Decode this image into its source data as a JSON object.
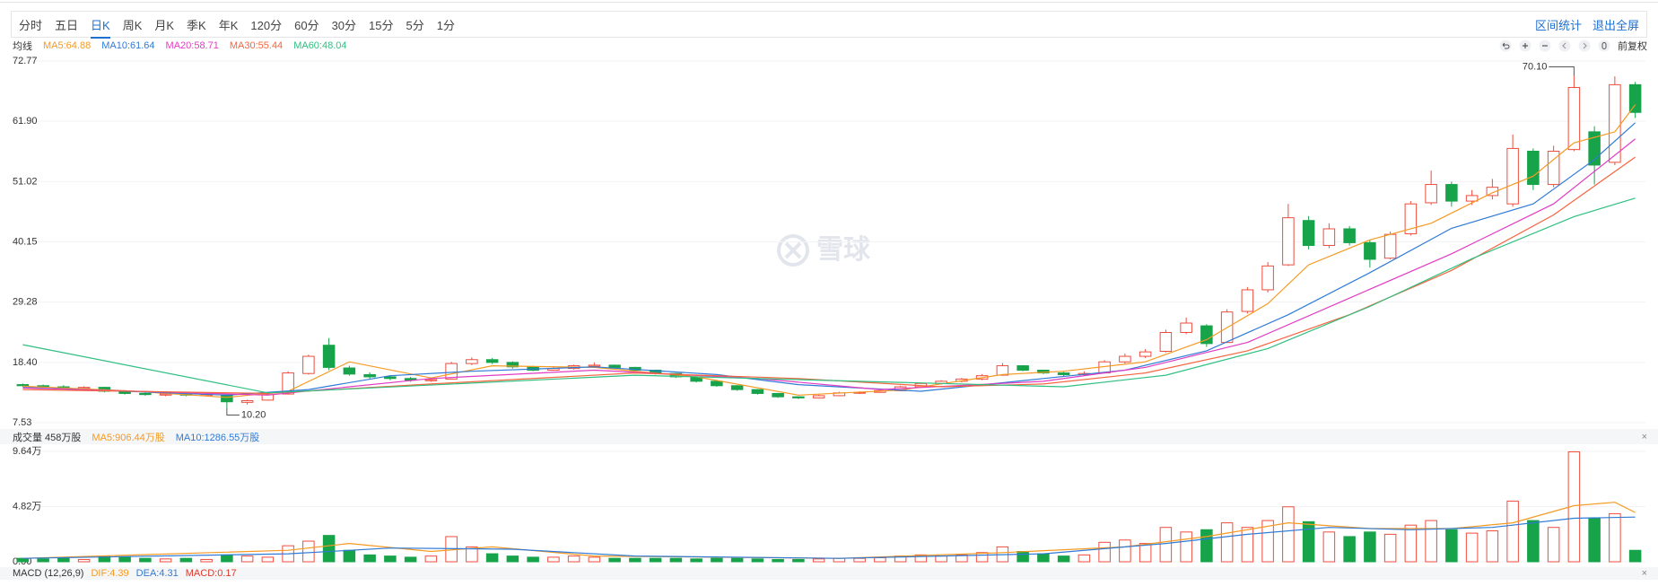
{
  "toolbar": {
    "tabs": [
      "分时",
      "五日",
      "日K",
      "周K",
      "月K",
      "季K",
      "年K",
      "120分",
      "60分",
      "30分",
      "15分",
      "5分",
      "1分"
    ],
    "active": "日K",
    "actions": [
      "区间统计",
      "退出全屏"
    ],
    "adjust": "前复权"
  },
  "watermark": "雪球",
  "chart_data": {
    "type": "candlestick",
    "legend_title": "均线",
    "ylim": [
      7.53,
      72.77
    ],
    "yticks": [
      72.77,
      {
        "value": 61.9,
        "label": "61.90"
      },
      51.02,
      40.15,
      29.28,
      {
        "value": 18.4,
        "label": "18.40"
      },
      7.53
    ],
    "up_color": "#ee4d3d",
    "down_color": "#16a34a",
    "ohlc": [
      [
        14.4,
        14.6,
        14.0,
        14.2
      ],
      [
        14.2,
        14.4,
        13.8,
        14.0
      ],
      [
        14.0,
        14.3,
        13.6,
        13.8
      ],
      [
        13.7,
        14.1,
        13.5,
        13.9
      ],
      [
        13.9,
        14.0,
        13.0,
        13.2
      ],
      [
        13.2,
        13.4,
        12.6,
        12.8
      ],
      [
        12.8,
        13.0,
        12.4,
        12.6
      ],
      [
        12.5,
        12.9,
        12.3,
        12.7
      ],
      [
        12.7,
        12.9,
        12.3,
        12.5
      ],
      [
        12.4,
        12.8,
        12.2,
        12.6
      ],
      [
        12.5,
        12.6,
        10.2,
        11.3
      ],
      [
        11.2,
        11.7,
        10.8,
        11.5
      ],
      [
        11.6,
        12.8,
        11.5,
        12.6
      ],
      [
        12.7,
        16.8,
        12.6,
        16.5
      ],
      [
        16.4,
        19.8,
        16.2,
        19.5
      ],
      [
        21.5,
        22.8,
        17.0,
        17.5
      ],
      [
        17.4,
        17.8,
        16.0,
        16.3
      ],
      [
        16.2,
        16.6,
        15.5,
        15.8
      ],
      [
        15.8,
        16.1,
        15.2,
        15.5
      ],
      [
        15.5,
        15.8,
        14.9,
        15.2
      ],
      [
        15.1,
        15.6,
        14.9,
        15.3
      ],
      [
        15.4,
        18.5,
        15.3,
        18.2
      ],
      [
        18.2,
        19.3,
        17.9,
        18.9
      ],
      [
        18.9,
        19.2,
        18.1,
        18.4
      ],
      [
        18.4,
        18.6,
        17.3,
        17.6
      ],
      [
        17.6,
        17.8,
        16.8,
        17.0
      ],
      [
        17.0,
        17.6,
        16.9,
        17.3
      ],
      [
        17.3,
        18.0,
        17.1,
        17.8
      ],
      [
        17.7,
        18.4,
        17.5,
        17.9
      ],
      [
        17.9,
        18.0,
        17.3,
        17.5
      ],
      [
        17.5,
        17.6,
        16.8,
        17.0
      ],
      [
        17.0,
        17.1,
        16.2,
        16.4
      ],
      [
        16.4,
        16.5,
        15.6,
        15.8
      ],
      [
        15.8,
        15.9,
        14.8,
        15.0
      ],
      [
        15.0,
        15.1,
        14.0,
        14.2
      ],
      [
        14.2,
        14.3,
        13.3,
        13.5
      ],
      [
        13.5,
        13.6,
        12.6,
        12.8
      ],
      [
        12.8,
        12.9,
        12.0,
        12.2
      ],
      [
        12.2,
        12.3,
        11.8,
        12.0
      ],
      [
        12.0,
        12.6,
        11.9,
        12.4
      ],
      [
        12.4,
        13.1,
        12.3,
        12.9
      ],
      [
        12.9,
        13.2,
        12.7,
        13.0
      ],
      [
        13.0,
        13.5,
        12.9,
        13.3
      ],
      [
        13.3,
        14.2,
        13.2,
        14.0
      ],
      [
        14.0,
        14.8,
        13.9,
        14.6
      ],
      [
        14.6,
        15.2,
        14.4,
        15.0
      ],
      [
        15.0,
        15.6,
        14.8,
        15.4
      ],
      [
        15.4,
        16.3,
        15.2,
        16.0
      ],
      [
        16.1,
        18.3,
        16.0,
        17.8
      ],
      [
        17.8,
        17.9,
        16.8,
        17.0
      ],
      [
        17.0,
        17.1,
        16.3,
        16.5
      ],
      [
        16.5,
        16.7,
        15.9,
        16.2
      ],
      [
        16.2,
        16.8,
        16.0,
        16.4
      ],
      [
        16.5,
        18.8,
        16.4,
        18.5
      ],
      [
        18.5,
        20.0,
        18.2,
        19.5
      ],
      [
        19.5,
        20.8,
        19.2,
        20.3
      ],
      [
        20.4,
        24.3,
        20.2,
        23.8
      ],
      [
        23.8,
        26.5,
        23.5,
        25.5
      ],
      [
        25.0,
        25.3,
        21.2,
        21.8
      ],
      [
        22.0,
        28.0,
        21.9,
        27.5
      ],
      [
        27.6,
        32.0,
        27.2,
        31.5
      ],
      [
        31.5,
        36.5,
        31.0,
        35.8
      ],
      [
        36.0,
        47.0,
        35.8,
        44.5
      ],
      [
        44.0,
        44.8,
        38.8,
        39.5
      ],
      [
        39.5,
        43.5,
        39.0,
        42.5
      ],
      [
        42.5,
        43.0,
        39.5,
        40.0
      ],
      [
        40.0,
        40.5,
        35.5,
        37.0
      ],
      [
        37.2,
        42.0,
        37.0,
        41.5
      ],
      [
        41.6,
        47.5,
        41.3,
        47.0
      ],
      [
        47.2,
        53.0,
        46.8,
        50.5
      ],
      [
        50.5,
        51.0,
        46.5,
        47.5
      ],
      [
        47.5,
        49.5,
        46.8,
        48.5
      ],
      [
        48.5,
        51.5,
        47.8,
        50.0
      ],
      [
        47.0,
        59.5,
        46.5,
        57.0
      ],
      [
        56.5,
        57.0,
        49.5,
        50.5
      ],
      [
        50.5,
        57.5,
        50.0,
        56.5
      ],
      [
        56.8,
        70.1,
        56.5,
        68.0
      ],
      [
        60.0,
        61.0,
        50.5,
        54.0
      ],
      [
        54.5,
        70.0,
        54.0,
        68.5
      ],
      [
        68.5,
        69.0,
        62.5,
        63.5
      ]
    ],
    "series": [
      {
        "name": "MA5:64.88",
        "color": "#f59a23",
        "x": [
          0,
          5,
          10,
          13,
          16,
          20,
          23,
          28,
          33,
          38,
          43,
          48,
          51,
          55,
          58,
          61,
          63,
          66,
          69,
          72,
          74,
          76,
          78,
          79
        ],
        "values": [
          14.1,
          13.3,
          12.1,
          13.2,
          18.5,
          15.6,
          17.8,
          17.5,
          15.8,
          12.5,
          13.4,
          16.2,
          16.8,
          18.5,
          22.5,
          29,
          36,
          40.5,
          43.5,
          49,
          52,
          58,
          60,
          64.88
        ]
      },
      {
        "name": "MA10:61.64",
        "color": "#2f7bd6",
        "x": [
          0,
          10,
          14,
          18,
          22,
          28,
          34,
          38,
          44,
          50,
          54,
          58,
          62,
          66,
          70,
          74,
          77,
          79
        ],
        "values": [
          13.9,
          12.5,
          13.5,
          16.0,
          16.8,
          17.6,
          16.2,
          14.4,
          13.2,
          15.5,
          17.0,
          20.5,
          27,
          34.6,
          42.6,
          47,
          55,
          61.64
        ]
      },
      {
        "name": "MA20:58.71",
        "color": "#e03cc4",
        "x": [
          0,
          12,
          20,
          28,
          36,
          42,
          50,
          55,
          60,
          65,
          70,
          75,
          79
        ],
        "values": [
          13.8,
          12.5,
          15.5,
          17.0,
          15.5,
          13.5,
          15.0,
          17.5,
          22,
          30,
          38,
          47,
          58.71
        ]
      },
      {
        "name": "MA30:55.44",
        "color": "#f5653f",
        "x": [
          0,
          12,
          20,
          30,
          38,
          45,
          50,
          55,
          60,
          65,
          70,
          75,
          79
        ],
        "values": [
          13.5,
          12.8,
          14.5,
          16.5,
          15.5,
          14.0,
          14.5,
          16.5,
          20.5,
          27,
          35,
          45,
          55.44
        ]
      },
      {
        "name": "MA60:48.04",
        "color": "#2fbf81",
        "x": [
          0,
          12,
          30,
          43,
          51,
          56,
          61,
          66,
          71,
          76,
          79
        ],
        "values": [
          21.6,
          12.9,
          16.1,
          14.8,
          14.0,
          16.1,
          20.9,
          28.5,
          37.1,
          44.7,
          48.04
        ]
      }
    ],
    "annotations": [
      {
        "value": 70.1,
        "label": "70.10"
      },
      {
        "value": 10.2,
        "label": "10.20"
      }
    ],
    "volume": {
      "title": "成交量 458万股",
      "ylim": [
        0,
        9.64
      ],
      "yticks": [
        {
          "value": 9.64,
          "label": "9.64万"
        },
        {
          "value": 4.82,
          "label": "4.82万"
        },
        {
          "value": 0,
          "label": "0.00"
        }
      ],
      "values": [
        0.3,
        0.25,
        0.3,
        0.2,
        0.5,
        0.4,
        0.3,
        0.25,
        0.3,
        0.2,
        0.6,
        0.5,
        0.4,
        1.4,
        1.8,
        2.3,
        1.0,
        0.6,
        0.5,
        0.4,
        0.5,
        2.2,
        1.3,
        0.7,
        0.5,
        0.4,
        0.4,
        0.5,
        0.4,
        0.3,
        0.3,
        0.3,
        0.3,
        0.25,
        0.3,
        0.3,
        0.25,
        0.2,
        0.2,
        0.25,
        0.3,
        0.3,
        0.35,
        0.5,
        0.6,
        0.5,
        0.6,
        0.8,
        1.3,
        0.9,
        0.7,
        0.5,
        0.6,
        1.7,
        1.9,
        1.6,
        3.0,
        2.6,
        2.8,
        3.4,
        3.0,
        3.6,
        4.8,
        3.5,
        2.6,
        2.2,
        2.6,
        2.4,
        3.2,
        3.6,
        2.8,
        2.5,
        2.7,
        5.3,
        3.6,
        3.0,
        9.6,
        3.8,
        4.2,
        1.0
      ],
      "series": [
        {
          "name": "MA5:906.44万股",
          "color": "#f59a23",
          "x": [
            0,
            13,
            16,
            20,
            23,
            28,
            40,
            48,
            54,
            58,
            62,
            66,
            70,
            73,
            76,
            78,
            79
          ],
          "values": [
            0.3,
            1.0,
            1.6,
            0.9,
            1.3,
            0.5,
            0.3,
            0.8,
            1.3,
            2.2,
            3.4,
            2.9,
            2.9,
            3.4,
            4.9,
            5.2,
            4.3
          ]
        },
        {
          "name": "MA10:1286.55万股",
          "color": "#2f7bd6",
          "x": [
            0,
            13,
            18,
            24,
            30,
            40,
            50,
            56,
            60,
            64,
            68,
            72,
            76,
            79
          ],
          "values": [
            0.3,
            0.7,
            1.2,
            1.1,
            0.5,
            0.3,
            0.7,
            1.6,
            2.4,
            3.0,
            2.8,
            3.0,
            3.8,
            3.9
          ]
        }
      ]
    },
    "macd": {
      "title": "MACD (12,26,9)",
      "items": [
        {
          "name": "DIF:4.39",
          "color": "#f59a23"
        },
        {
          "name": "DEA:4.31",
          "color": "#2f7bd6"
        },
        {
          "name": "MACD:0.17",
          "color": "#e0382b"
        }
      ]
    }
  }
}
